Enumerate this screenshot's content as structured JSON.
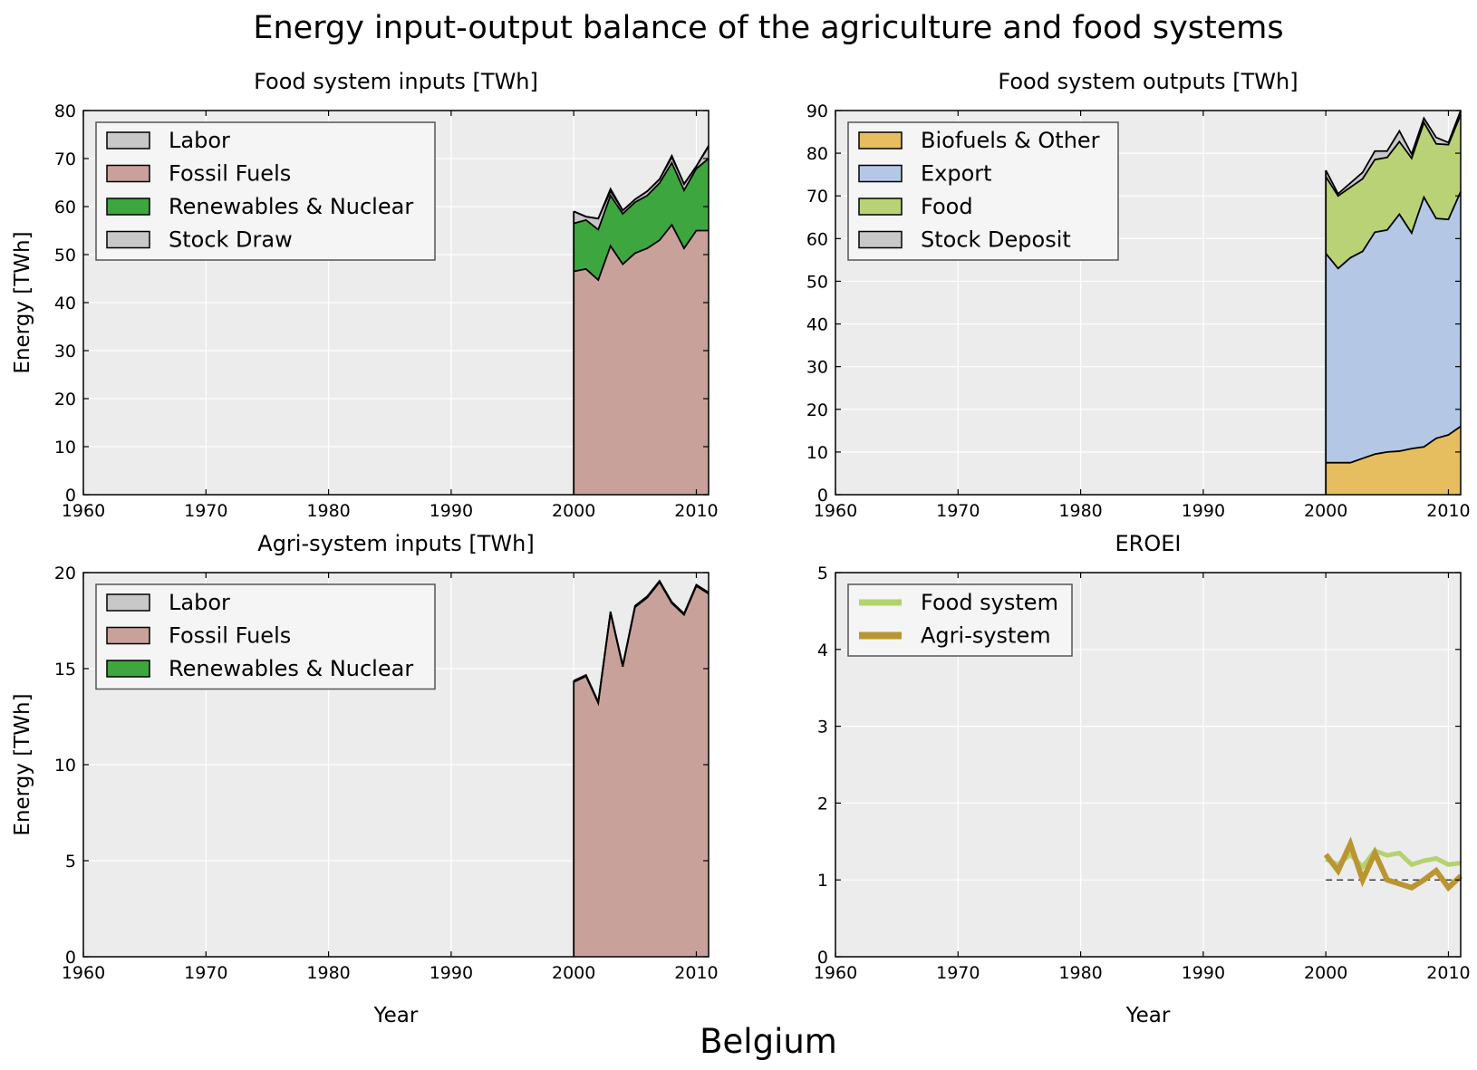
{
  "figure": {
    "title": "Energy input-output balance of the agriculture and food systems",
    "country": "Belgium"
  },
  "chart_data": [
    {
      "id": "food_inputs",
      "type": "area",
      "title": "Food system inputs [TWh]",
      "xlabel": "",
      "ylabel": "Energy [TWh]",
      "xlim": [
        1960,
        2011
      ],
      "ylim": [
        0,
        80
      ],
      "xticks": [
        1960,
        1970,
        1980,
        1990,
        2000,
        2010
      ],
      "yticks": [
        0,
        10,
        20,
        30,
        40,
        50,
        60,
        70,
        80
      ],
      "legend_position": "top-left",
      "x": [
        2000,
        2001,
        2002,
        2003,
        2004,
        2005,
        2006,
        2007,
        2008,
        2009,
        2010,
        2011
      ],
      "series": [
        {
          "name": "Fossil Fuels",
          "color": "#c8a29a",
          "values": [
            46.5,
            47,
            44.7,
            51.8,
            48,
            50.3,
            51.3,
            53,
            56.2,
            51.3,
            55,
            55
          ]
        },
        {
          "name": "Renewables & Nuclear",
          "color": "#3ea63e",
          "values": [
            10,
            10.2,
            10.5,
            10.5,
            10.5,
            10.6,
            11,
            11.9,
            12.9,
            12.1,
            12.9,
            15
          ]
        },
        {
          "name": "Labor",
          "color": "#c8c8c8",
          "values": [
            2.5,
            0.7,
            2.3,
            0.9,
            0.7,
            0.6,
            0.9,
            0.8,
            1.2,
            1.3,
            0.5,
            2.5
          ]
        },
        {
          "name": "Stock Draw",
          "color": "#c8c8c8",
          "values": [
            0,
            0,
            0,
            0.5,
            0,
            0,
            0,
            0,
            0.3,
            0,
            0,
            0.2
          ]
        }
      ],
      "legend": [
        "Labor",
        "Fossil Fuels",
        "Renewables & Nuclear",
        "Stock Draw"
      ]
    },
    {
      "id": "food_outputs",
      "type": "area",
      "title": "Food system outputs [TWh]",
      "xlabel": "",
      "ylabel": "",
      "xlim": [
        1960,
        2011
      ],
      "ylim": [
        0,
        90
      ],
      "xticks": [
        1960,
        1970,
        1980,
        1990,
        2000,
        2010
      ],
      "yticks": [
        0,
        10,
        20,
        30,
        40,
        50,
        60,
        70,
        80,
        90
      ],
      "legend_position": "top-left",
      "x": [
        2000,
        2001,
        2002,
        2003,
        2004,
        2005,
        2006,
        2007,
        2008,
        2009,
        2010,
        2011
      ],
      "series": [
        {
          "name": "Biofuels & Other",
          "color": "#e6be5f",
          "values": [
            7.5,
            7.5,
            7.5,
            8.5,
            9.5,
            10,
            10.2,
            10.8,
            11.2,
            13.2,
            14,
            16
          ]
        },
        {
          "name": "Export",
          "color": "#b4c8e6",
          "values": [
            49,
            45.5,
            48,
            48.5,
            52,
            52,
            55.5,
            50.5,
            58.5,
            51.5,
            50.5,
            55
          ]
        },
        {
          "name": "Food",
          "color": "#bad276",
          "values": [
            18,
            17,
            16.5,
            17,
            17,
            17,
            17,
            17.5,
            17.5,
            17.5,
            17.5,
            18
          ]
        },
        {
          "name": "Stock Deposit",
          "color": "#c8c8c8",
          "values": [
            1.5,
            0.5,
            1,
            1.5,
            2,
            1.5,
            2.5,
            1,
            1,
            1.5,
            0.5,
            1
          ]
        }
      ],
      "legend": [
        "Biofuels & Other",
        "Export",
        "Food",
        "Stock Deposit"
      ]
    },
    {
      "id": "agri_inputs",
      "type": "area",
      "title": "Agri-system inputs [TWh]",
      "xlabel": "Year",
      "ylabel": "Energy [TWh]",
      "xlim": [
        1960,
        2011
      ],
      "ylim": [
        0,
        20
      ],
      "xticks": [
        1960,
        1970,
        1980,
        1990,
        2000,
        2010
      ],
      "yticks": [
        0,
        5,
        10,
        15,
        20
      ],
      "legend_position": "top-left",
      "x": [
        2000,
        2001,
        2002,
        2003,
        2004,
        2005,
        2006,
        2007,
        2008,
        2009,
        2010,
        2011
      ],
      "series": [
        {
          "name": "Fossil Fuels",
          "color": "#c8a29a",
          "values": [
            14.3,
            14.6,
            13.2,
            17.9,
            15.1,
            18.2,
            18.7,
            19.5,
            18.4,
            17.8,
            19.3,
            18.9
          ]
        },
        {
          "name": "Renewables & Nuclear",
          "color": "#3ea63e",
          "values": [
            0.05,
            0.05,
            0.05,
            0.05,
            0.05,
            0.05,
            0.05,
            0.05,
            0.05,
            0.05,
            0.05,
            0.05
          ]
        },
        {
          "name": "Labor",
          "color": "#c8c8c8",
          "values": [
            0.02,
            0.02,
            0.02,
            0.02,
            0.02,
            0.02,
            0.02,
            0.02,
            0.02,
            0.02,
            0.02,
            0.02
          ]
        }
      ],
      "legend": [
        "Labor",
        "Fossil Fuels",
        "Renewables & Nuclear"
      ]
    },
    {
      "id": "eroei",
      "type": "line",
      "title": "EROEI",
      "xlabel": "Year",
      "ylabel": "",
      "xlim": [
        1960,
        2011
      ],
      "ylim": [
        0,
        5
      ],
      "xticks": [
        1960,
        1970,
        1980,
        1990,
        2000,
        2010
      ],
      "yticks": [
        0,
        1,
        2,
        3,
        4,
        5
      ],
      "legend_position": "top-left",
      "x": [
        2000,
        2001,
        2002,
        2003,
        2004,
        2005,
        2006,
        2007,
        2008,
        2009,
        2010,
        2011
      ],
      "series": [
        {
          "name": "Food system",
          "color": "#b4d26e",
          "width": 5,
          "values": [
            1.27,
            1.2,
            1.33,
            1.17,
            1.38,
            1.32,
            1.35,
            1.2,
            1.25,
            1.28,
            1.2,
            1.22
          ]
        },
        {
          "name": "Agri-system",
          "color": "#b99632",
          "width": 6,
          "values": [
            1.33,
            1.12,
            1.47,
            1.0,
            1.35,
            1.0,
            0.95,
            0.9,
            1.0,
            1.12,
            0.9,
            1.05
          ]
        }
      ],
      "reference_line": {
        "y": 1,
        "style": "dashed"
      },
      "legend": [
        "Food system",
        "Agri-system"
      ]
    }
  ]
}
